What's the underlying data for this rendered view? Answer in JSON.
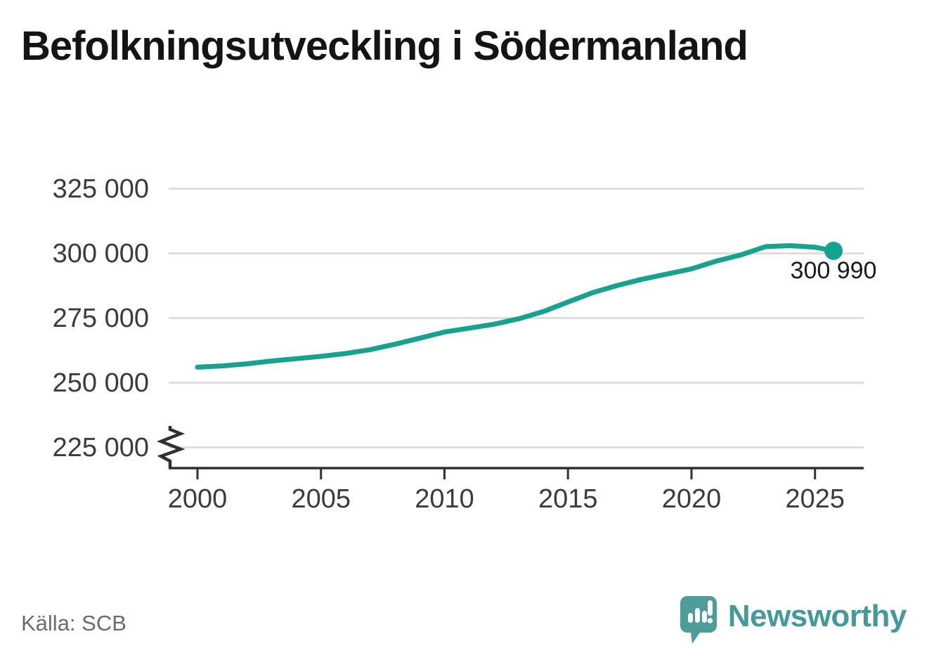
{
  "title": "Befolkningsutveckling i Södermanland",
  "source": "Källa: SCB",
  "branding": {
    "name": "Newsworthy",
    "logo_icon": "speech-bubble-bar-chart-icon",
    "logo_color": "#4e9c99",
    "text_color": "#44999b"
  },
  "colors": {
    "line": "#17a28f",
    "grid": "#d9d9d9",
    "axis": "#303030",
    "tick_text": "#3b3b3b",
    "muted_text": "#6b6b6b"
  },
  "chart_data": {
    "type": "line",
    "title": "Befolkningsutveckling i Södermanland",
    "xlabel": "",
    "ylabel": "",
    "x": [
      2000,
      2001,
      2002,
      2003,
      2004,
      2005,
      2006,
      2007,
      2008,
      2009,
      2010,
      2011,
      2012,
      2013,
      2014,
      2015,
      2016,
      2017,
      2018,
      2019,
      2020,
      2021,
      2022,
      2023,
      2024,
      2025,
      2025.75
    ],
    "values": [
      256000,
      256500,
      257300,
      258400,
      259300,
      260200,
      261300,
      262800,
      264900,
      267200,
      269600,
      271100,
      272600,
      274700,
      277500,
      281200,
      284800,
      287600,
      290000,
      292000,
      294000,
      297000,
      299400,
      302600,
      303000,
      302400,
      300990
    ],
    "last_point": {
      "label": "300 990",
      "value": 300990
    },
    "x_ticks": {
      "values": [
        2000,
        2005,
        2010,
        2015,
        2020,
        2025
      ],
      "labels": [
        "2000",
        "2005",
        "2010",
        "2015",
        "2020",
        "2025"
      ]
    },
    "y_ticks": {
      "values": [
        325000,
        300000,
        275000,
        250000,
        225000
      ],
      "labels": [
        "325 000",
        "300 000",
        "275 000",
        "250 000",
        "225 000"
      ]
    },
    "ylim": [
      225000,
      332000
    ],
    "xlim": [
      2000,
      2026.3
    ],
    "y_axis_break": true,
    "grid": "horizontal",
    "legend": "none",
    "line_color": "#17a28f",
    "marker_on_last_point": true
  }
}
